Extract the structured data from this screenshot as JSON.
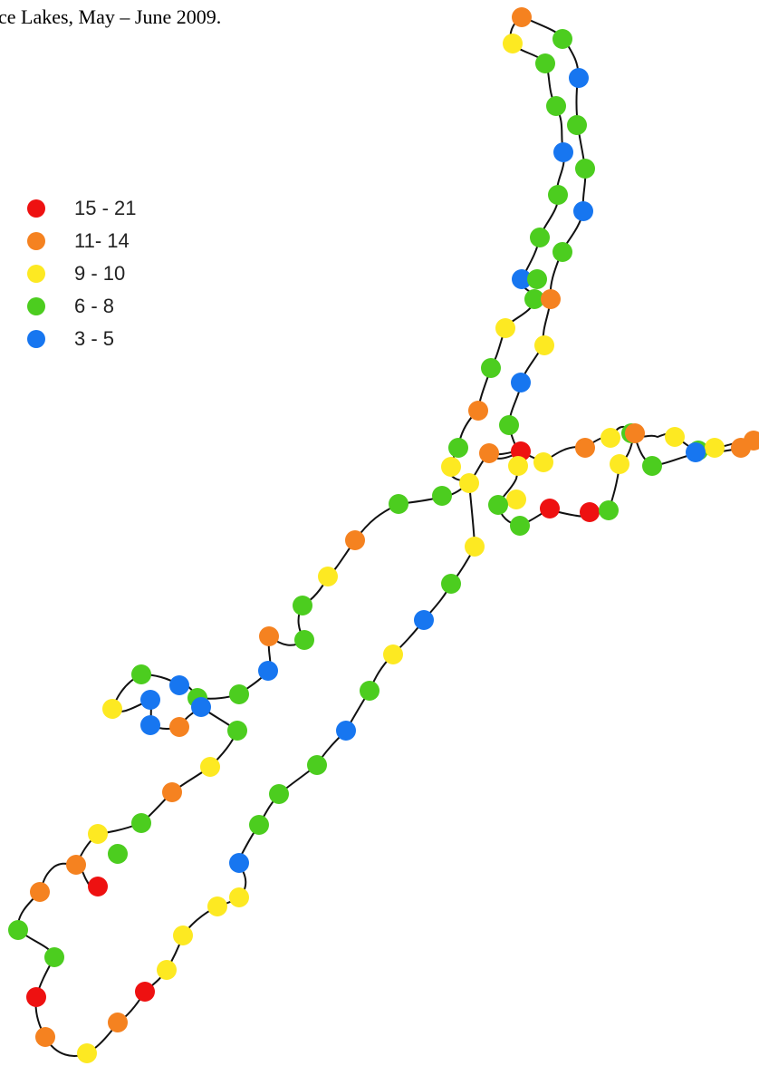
{
  "caption": "ce Lakes, May – June 2009.",
  "legend": [
    {
      "label": "15 - 21",
      "color": "#ee1111"
    },
    {
      "label": "11- 14",
      "color": "#f58220"
    },
    {
      "label": "9 - 10",
      "color": "#fde922"
    },
    {
      "label": "6 - 8",
      "color": "#4ccd1f"
    },
    {
      "label": "3 - 5",
      "color": "#1776f0"
    }
  ]
}
